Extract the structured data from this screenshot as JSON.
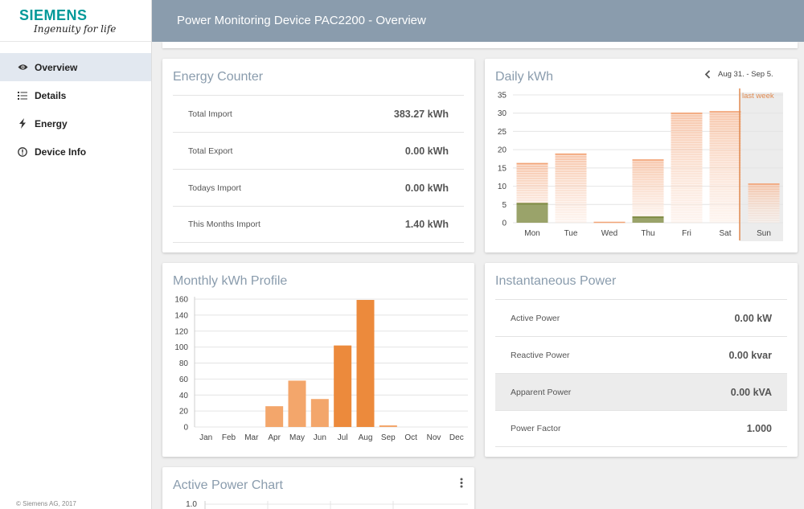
{
  "brand": {
    "name": "SIEMENS",
    "tagline": "Ingenuity for life"
  },
  "header": {
    "title": "Power Monitoring Device PAC2200 - Overview"
  },
  "sidebar": {
    "items": [
      {
        "label": "Overview",
        "icon": "eye-icon",
        "active": true
      },
      {
        "label": "Details",
        "icon": "list-icon",
        "active": false
      },
      {
        "label": "Energy",
        "icon": "bolt-icon",
        "active": false
      },
      {
        "label": "Device Info",
        "icon": "info-icon",
        "active": false
      }
    ],
    "copyright": "© Siemens AG, 2017"
  },
  "energy_counter": {
    "title": "Energy Counter",
    "rows": [
      {
        "label": "Total Import",
        "value": "383.27 kWh"
      },
      {
        "label": "Total Export",
        "value": "0.00 kWh"
      },
      {
        "label": "Todays Import",
        "value": "0.00 kWh"
      },
      {
        "label": "This Months Import",
        "value": "1.40 kWh"
      }
    ]
  },
  "daily": {
    "title": "Daily kWh",
    "range": "Aug 31. - Sep 5.",
    "marker_label": "last week"
  },
  "monthly": {
    "title": "Monthly kWh Profile"
  },
  "instant": {
    "title": "Instantaneous Power",
    "rows": [
      {
        "label": "Active Power",
        "value": "0.00 kW"
      },
      {
        "label": "Reactive Power",
        "value": "0.00 kvar"
      },
      {
        "label": "Apparent Power",
        "value": "0.00 kVA"
      },
      {
        "label": "Power Factor",
        "value": "1.000"
      }
    ]
  },
  "active_chart": {
    "title": "Active Power Chart"
  },
  "chart_data": [
    {
      "type": "bar",
      "title": "Daily kWh",
      "categories": [
        "Mon",
        "Tue",
        "Wed",
        "Thu",
        "Fri",
        "Sat",
        "Sun"
      ],
      "series": [
        {
          "values": [
            16.2,
            18.8,
            0,
            17.2,
            30,
            30.4,
            10.6
          ]
        },
        {
          "values": [
            5.2,
            0,
            0,
            1.5,
            0,
            0,
            0
          ]
        }
      ],
      "ylim": [
        0,
        35
      ],
      "yticks": [
        0,
        5,
        10,
        15,
        20,
        25,
        30,
        35
      ],
      "grid": true,
      "colors": {
        "previous": "#f2a477",
        "current": "#7e8a43",
        "marker": "#e08a50"
      }
    },
    {
      "type": "bar",
      "title": "Monthly kWh Profile",
      "categories": [
        "Jan",
        "Feb",
        "Mar",
        "Apr",
        "May",
        "Jun",
        "Jul",
        "Aug",
        "Sep",
        "Oct",
        "Nov",
        "Dec"
      ],
      "values": [
        0,
        0,
        0,
        26,
        58,
        35,
        102,
        159,
        2,
        0,
        0,
        0
      ],
      "ylim": [
        0,
        160
      ],
      "yticks": [
        0,
        20,
        40,
        60,
        80,
        100,
        120,
        140,
        160
      ],
      "grid": true,
      "colors": {
        "past": "#f3a66b",
        "recent": "#ec8a3c"
      }
    },
    {
      "type": "line",
      "title": "Active Power Chart",
      "yticks": [
        1.0
      ]
    }
  ]
}
